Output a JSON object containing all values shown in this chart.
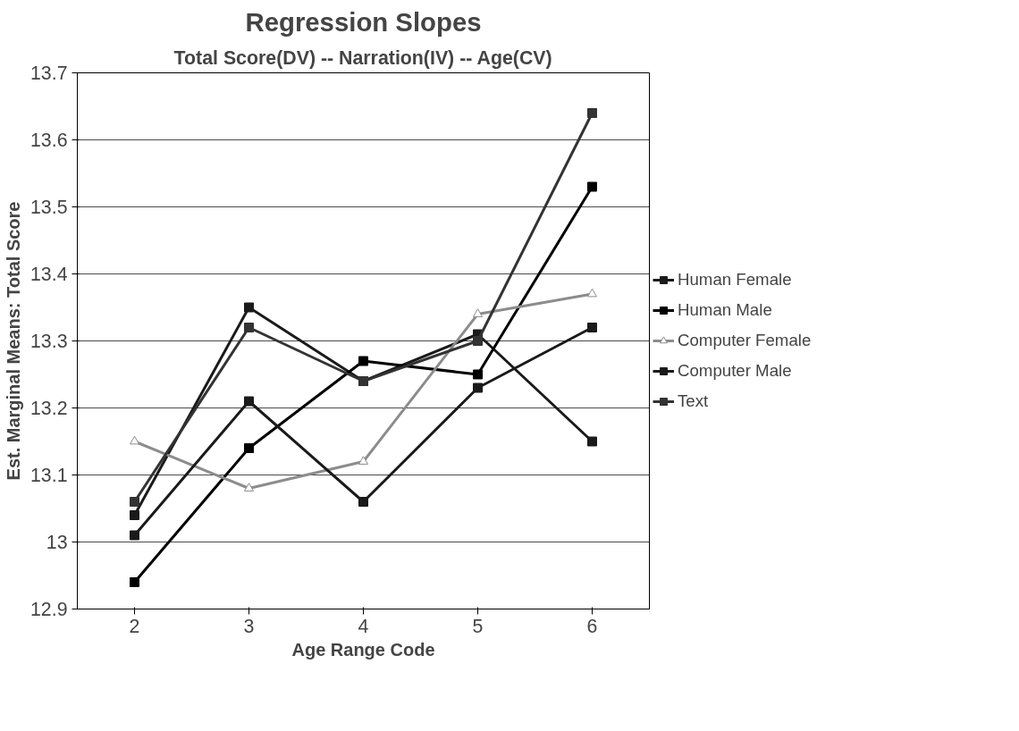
{
  "chart_data": {
    "type": "line",
    "title": "Regression Slopes",
    "subtitle": "Total Score(DV) -- Narration(IV) -- Age(CV)",
    "xlabel": "Age Range Code",
    "ylabel": "Est. Marginal Means: Total Score",
    "categories": [
      "2",
      "3",
      "4",
      "5",
      "6"
    ],
    "series": [
      {
        "name": "Human Female",
        "color": "#1a1a1a",
        "marker": "square",
        "values": [
          13.04,
          13.35,
          13.24,
          13.31,
          13.15
        ]
      },
      {
        "name": "Human Male",
        "color": "#000000",
        "marker": "square",
        "values": [
          12.94,
          13.14,
          13.27,
          13.25,
          13.53
        ]
      },
      {
        "name": "Computer Female",
        "color": "#8c8c8c",
        "marker": "triangle",
        "values": [
          13.15,
          13.08,
          13.12,
          13.34,
          13.37
        ]
      },
      {
        "name": "Computer Male",
        "color": "#1a1a1a",
        "marker": "square",
        "values": [
          13.01,
          13.21,
          13.06,
          13.23,
          13.32
        ]
      },
      {
        "name": "Text",
        "color": "#333333",
        "marker": "square",
        "values": [
          13.06,
          13.32,
          13.24,
          13.3,
          13.64
        ]
      }
    ],
    "ylim": [
      12.9,
      13.7
    ],
    "yticks": [
      12.9,
      13,
      13.1,
      13.2,
      13.3,
      13.4,
      13.5,
      13.6,
      13.7
    ],
    "grid": "y",
    "legend": "right",
    "line_style": "solid"
  }
}
